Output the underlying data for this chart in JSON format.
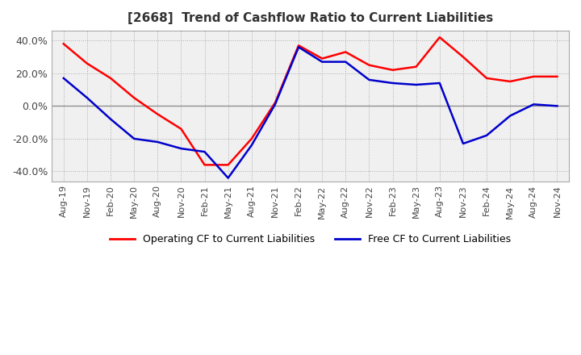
{
  "title": "[2668]  Trend of Cashflow Ratio to Current Liabilities",
  "legend_labels": [
    "Operating CF to Current Liabilities",
    "Free CF to Current Liabilities"
  ],
  "legend_colors": [
    "#ff0000",
    "#0000cc"
  ],
  "ylim": [
    -46,
    46
  ],
  "yticks": [
    -40,
    -20,
    0,
    20,
    40
  ],
  "ytick_labels": [
    "-40.0%",
    "-20.0%",
    "0.0%",
    "20.0%",
    "40.0%"
  ],
  "x_labels": [
    "Aug-19",
    "Nov-19",
    "Feb-20",
    "May-20",
    "Aug-20",
    "Nov-20",
    "Feb-21",
    "May-21",
    "Aug-21",
    "Nov-21",
    "Feb-22",
    "May-22",
    "Aug-22",
    "Nov-22",
    "Feb-23",
    "May-23",
    "Aug-23",
    "Nov-23",
    "Feb-24",
    "May-24",
    "Aug-24",
    "Nov-24"
  ],
  "operating_cf": [
    38,
    26,
    17,
    5,
    -5,
    -14,
    -36,
    -36,
    -20,
    2,
    37,
    29,
    33,
    25,
    22,
    24,
    42,
    30,
    17,
    15,
    18,
    18
  ],
  "free_cf": [
    17,
    5,
    -8,
    -20,
    -22,
    -26,
    -28,
    -44,
    -24,
    1,
    36,
    27,
    27,
    16,
    14,
    13,
    14,
    -23,
    -18,
    -6,
    1,
    0
  ]
}
